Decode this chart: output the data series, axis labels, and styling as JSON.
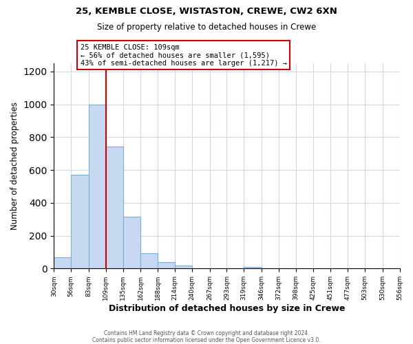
{
  "title1": "25, KEMBLE CLOSE, WISTASTON, CREWE, CW2 6XN",
  "title2": "Size of property relative to detached houses in Crewe",
  "xlabel": "Distribution of detached houses by size in Crewe",
  "ylabel": "Number of detached properties",
  "bar_edges": [
    30,
    56,
    83,
    109,
    135,
    162,
    188,
    214,
    240,
    267,
    293,
    319,
    346,
    372,
    398,
    425,
    451,
    477,
    503,
    530,
    556
  ],
  "bar_heights": [
    70,
    570,
    1000,
    745,
    315,
    95,
    40,
    20,
    0,
    0,
    0,
    10,
    0,
    0,
    0,
    0,
    0,
    0,
    0,
    0
  ],
  "bar_color": "#c6d9f0",
  "bar_edge_color": "#7bafd4",
  "property_line_x": 109,
  "property_line_color": "#cc0000",
  "annotation_text": "25 KEMBLE CLOSE: 109sqm\n← 56% of detached houses are smaller (1,595)\n43% of semi-detached houses are larger (1,217) →",
  "annotation_box_color": "#ffffff",
  "annotation_box_edge_color": "#cc0000",
  "ylim": [
    0,
    1250
  ],
  "yticks": [
    0,
    200,
    400,
    600,
    800,
    1000,
    1200
  ],
  "tick_labels": [
    "30sqm",
    "56sqm",
    "83sqm",
    "109sqm",
    "135sqm",
    "162sqm",
    "188sqm",
    "214sqm",
    "240sqm",
    "267sqm",
    "293sqm",
    "319sqm",
    "346sqm",
    "372sqm",
    "398sqm",
    "425sqm",
    "451sqm",
    "477sqm",
    "503sqm",
    "530sqm",
    "556sqm"
  ],
  "footer1": "Contains HM Land Registry data © Crown copyright and database right 2024.",
  "footer2": "Contains public sector information licensed under the Open Government Licence v3.0.",
  "bg_color": "#ffffff",
  "grid_color": "#d0d8e8"
}
